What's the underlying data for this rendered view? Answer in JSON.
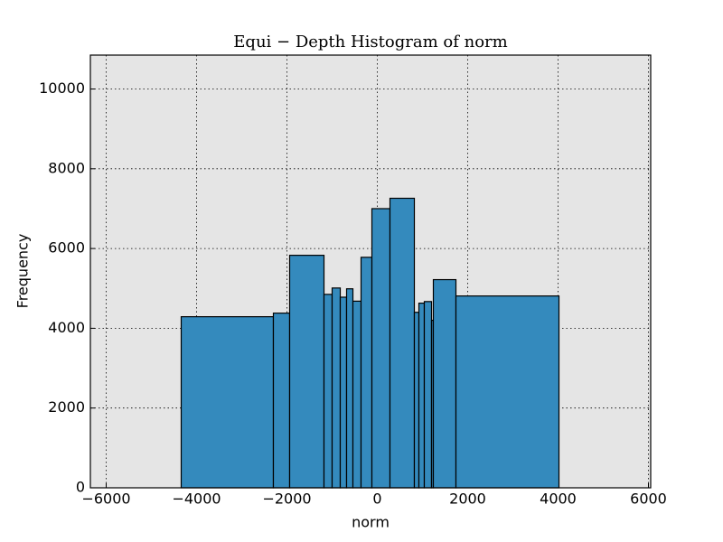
{
  "chart_data": {
    "type": "histogram",
    "title": "Equi − Depth Histogram of norm",
    "x_label": "norm",
    "y_label": "Frequency",
    "bins": [
      -4340,
      -2300,
      -1940,
      -1180,
      -1000,
      -820,
      -680,
      -540,
      -360,
      -120,
      280,
      820,
      920,
      1040,
      1200,
      1240,
      1740,
      4020
    ],
    "counts": [
      4290,
      4380,
      5830,
      4850,
      5010,
      4780,
      4990,
      4680,
      5780,
      7000,
      7260,
      4400,
      4630,
      4670,
      4200,
      5220,
      4810
    ],
    "color": "#348abd",
    "xlim": [
      -6350,
      6050
    ],
    "xticks": [
      {
        "value": -6000,
        "label": "−6000"
      },
      {
        "value": -4000,
        "label": "−4000"
      },
      {
        "value": -2000,
        "label": "−2000"
      },
      0,
      2000,
      4000,
      6000
    ],
    "ylim": [
      0,
      10850
    ],
    "yticks": [
      0,
      2000,
      4000,
      6000,
      8000,
      10000
    ],
    "grid": true
  }
}
